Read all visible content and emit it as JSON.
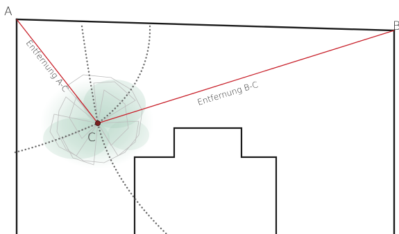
{
  "points": {
    "a": "A",
    "b": "B",
    "c": "C"
  },
  "distances": {
    "ac": "Entfernung A-C",
    "bc": "Entfernung B-C"
  },
  "colors": {
    "measure_line": "#c8202a",
    "walls": "#1a1a1a",
    "uncertainty_cloud": "#7fb59c",
    "point_c": "#7a1f1f"
  }
}
